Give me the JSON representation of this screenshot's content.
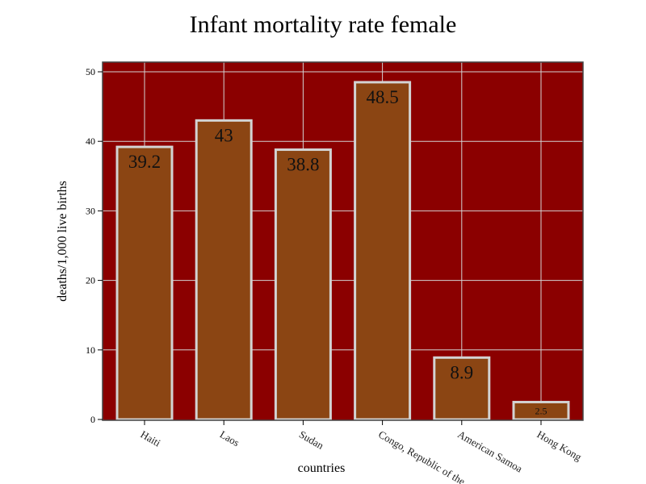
{
  "colors": {
    "plot_background": "#8b0000",
    "bar_fill": "#8b4513",
    "bar_outline": "#d3d3d3",
    "grid": "#d3d3d3",
    "frame": "#444444"
  },
  "chart_data": {
    "type": "bar",
    "title": "Infant mortality rate female",
    "xlabel": "countries",
    "ylabel": "deaths/1,000 live births",
    "categories": [
      "Haiti",
      "Laos",
      "Sudan",
      "Congo, Republic of the",
      "American Samoa",
      "Hong Kong"
    ],
    "values": [
      39.2,
      43,
      38.8,
      48.5,
      8.9,
      2.5
    ],
    "value_labels": [
      "39.2",
      "43",
      "38.8",
      "48.5",
      "8.9",
      "2.5"
    ],
    "ylim": [
      0,
      51.5
    ],
    "yticks": [
      0,
      10,
      20,
      30,
      40,
      50
    ],
    "grid": true,
    "legend": "none"
  }
}
